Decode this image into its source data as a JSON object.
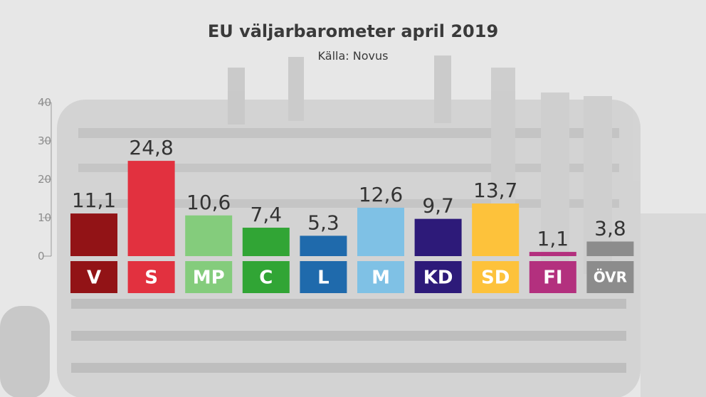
{
  "title": "EU väljarbarometer april 2019",
  "subtitle": "Källa: Novus",
  "chart_data": {
    "type": "bar",
    "title": "EU väljarbarometer april 2019",
    "subtitle": "Källa: Novus",
    "xlabel": "",
    "ylabel": "",
    "ylim": [
      0,
      40
    ],
    "yticks": [
      "40",
      "30",
      "20",
      "10",
      "0"
    ],
    "categories": [
      "V",
      "S",
      "MP",
      "C",
      "L",
      "M",
      "KD",
      "SD",
      "FI",
      "ÖVR"
    ],
    "values": [
      11.1,
      24.8,
      10.6,
      7.4,
      5.3,
      12.6,
      9.7,
      13.7,
      1.1,
      3.8
    ],
    "value_labels": [
      "11,1",
      "24,8",
      "10,6",
      "7,4",
      "5,3",
      "12,6",
      "9,7",
      "13,7",
      "1,1",
      "3,8"
    ],
    "colors": [
      "#921316",
      "#e2313f",
      "#84cc7c",
      "#31a535",
      "#1f6aac",
      "#7fc1e5",
      "#2d1a79",
      "#fdc23b",
      "#b3307e",
      "#8c8c8c"
    ],
    "grid": false,
    "legend": "none"
  }
}
